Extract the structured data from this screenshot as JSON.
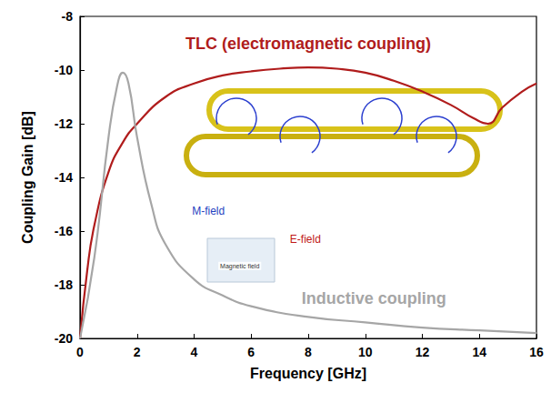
{
  "chart_data": {
    "type": "line",
    "x_label": "Frequency [GHz]",
    "y_label": "Coupling Gain [dB]",
    "xlim": [
      0,
      16
    ],
    "xticks": [
      0,
      2,
      4,
      6,
      8,
      10,
      12,
      14,
      16
    ],
    "ylim": [
      -20,
      -8
    ],
    "yticks": [
      -20,
      -18,
      -16,
      -14,
      -12,
      -10,
      -8
    ],
    "grid": false,
    "series": [
      {
        "name": "TLC (electromagnetic coupling)",
        "color": "#b01c1c",
        "label_at": [
          8,
          -9.0
        ],
        "x": [
          0,
          0.25,
          0.5,
          1,
          1.5,
          2,
          3,
          4,
          5,
          6,
          7,
          8,
          9,
          10,
          11,
          12,
          13,
          13.8,
          14.3,
          14.8,
          15.5,
          16
        ],
        "values": [
          -20,
          -17.5,
          -15.8,
          -13.8,
          -12.7,
          -12.0,
          -11.0,
          -10.5,
          -10.2,
          -10.05,
          -9.95,
          -9.9,
          -9.95,
          -10.1,
          -10.4,
          -10.8,
          -11.3,
          -11.8,
          -12.0,
          -11.4,
          -10.8,
          -10.5
        ]
      },
      {
        "name": "Inductive coupling",
        "color": "#a6a6a6",
        "label_at": [
          10.3,
          -18.5
        ],
        "x": [
          0,
          0.5,
          1,
          1.3,
          1.5,
          1.7,
          2,
          2.5,
          3,
          4,
          5,
          6,
          8,
          10,
          12,
          14,
          16
        ],
        "values": [
          -20,
          -17,
          -12.5,
          -10.6,
          -10.1,
          -10.5,
          -12.5,
          -15,
          -16.5,
          -17.8,
          -18.4,
          -18.8,
          -19.2,
          -19.4,
          -19.6,
          -19.7,
          -19.8
        ]
      }
    ],
    "annotations": [
      {
        "text": "M-field",
        "x": 4.5,
        "y": -15.25,
        "color": "#1f3fbf"
      },
      {
        "text": "E-field",
        "x": 7.9,
        "y": -16.3,
        "color": "#c01818"
      },
      {
        "text": "Magnetic field",
        "x": 5.6,
        "y": -17.3,
        "color": "#333333"
      }
    ]
  }
}
